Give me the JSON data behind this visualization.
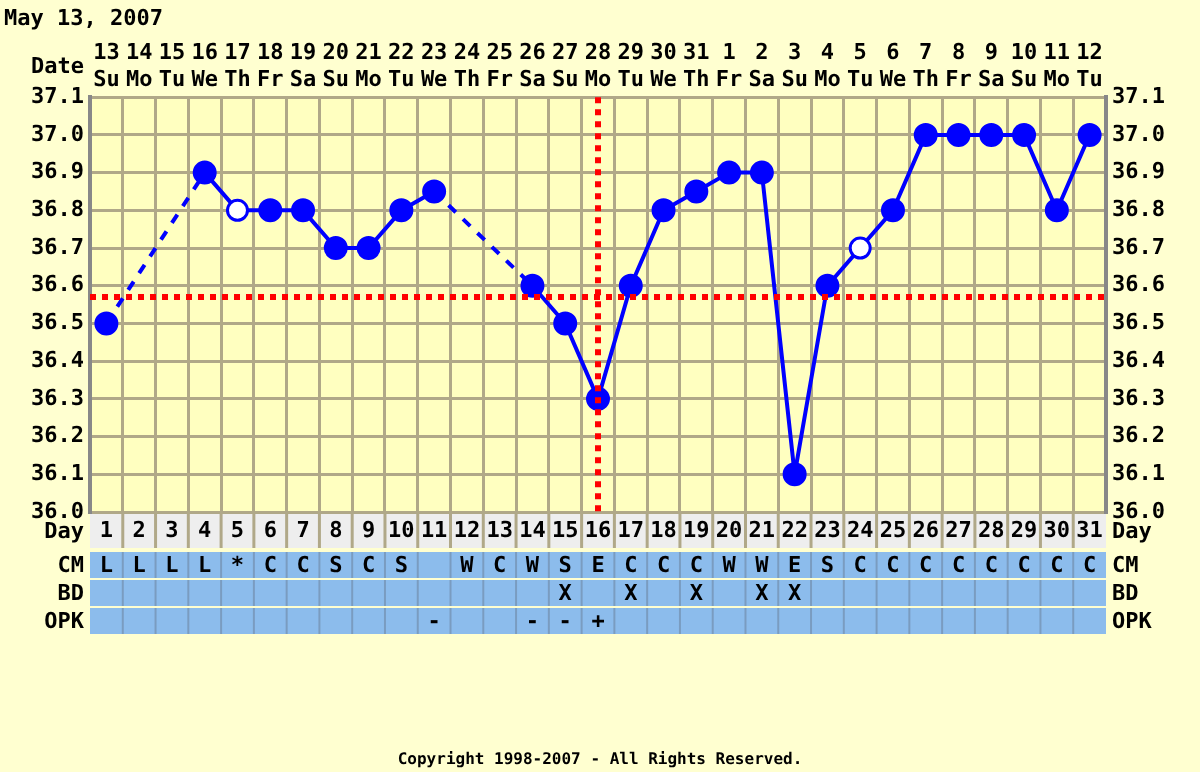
{
  "chart_data": {
    "type": "line",
    "title": "May 13, 2007",
    "xlabel": "Date",
    "x2label": "Day",
    "categories": [
      "13 Su",
      "14 Mo",
      "15 Tu",
      "16 We",
      "17 Th",
      "18 Fr",
      "19 Sa",
      "20 Su",
      "21 Mo",
      "22 Tu",
      "23 We",
      "24 Th",
      "25 Fr",
      "26 Sa",
      "27 Su",
      "28 Mo",
      "29 Tu",
      "30 We",
      "31 Th",
      "1 Fr",
      "2 Sa",
      "3 Su",
      "4 Mo",
      "5 Tu",
      "6 We",
      "7 Th",
      "8 Fr",
      "9 Sa",
      "10 Su",
      "11 Mo",
      "12 Tu"
    ],
    "series": [
      {
        "color": "#0000ff",
        "values": [
          36.5,
          null,
          null,
          36.9,
          36.8,
          36.8,
          36.8,
          36.7,
          36.7,
          36.8,
          36.85,
          null,
          null,
          36.6,
          36.5,
          36.3,
          36.6,
          36.8,
          36.85,
          36.9,
          36.9,
          36.1,
          36.6,
          36.7,
          36.8,
          37.0,
          37.0,
          37.0,
          37.0,
          36.8,
          37.0
        ]
      },
      {
        "type": "scatter",
        "color": "#0000ff",
        "values": [
          null,
          null,
          null,
          null,
          36.8,
          null,
          null,
          null,
          null,
          null,
          null,
          null,
          null,
          null,
          null,
          null,
          null,
          null,
          null,
          null,
          null,
          null,
          null,
          36.7,
          null,
          null,
          null,
          null,
          null,
          null,
          null
        ]
      }
    ],
    "ylim": [
      36.0,
      37.1
    ],
    "yticks": [
      {
        "value": 36.0,
        "label": "36.0"
      },
      36.1,
      36.2,
      36.3,
      36.4,
      36.5,
      36.6,
      36.7,
      36.8,
      36.9,
      {
        "value": 37.0,
        "label": "37.0"
      },
      37.1
    ],
    "y2lim": [
      36.0,
      37.1
    ],
    "y2ticks": [
      {
        "value": 36.0,
        "label": "36.0"
      },
      36.1,
      36.2,
      36.3,
      36.4,
      36.5,
      36.6,
      36.7,
      36.8,
      36.9,
      {
        "value": 37.0,
        "label": "37.0"
      },
      37.1
    ],
    "x2lim": [
      0.5,
      31.5
    ],
    "x2ticks": [
      1,
      2,
      3,
      4,
      5,
      6,
      7,
      8,
      9,
      10,
      11,
      12,
      13,
      14,
      15,
      16,
      17,
      18,
      19,
      20,
      21,
      22,
      23,
      24,
      25,
      26,
      27,
      28,
      29,
      30,
      31
    ],
    "ref_lines": [
      {
        "axis": "y",
        "value": 36.57,
        "color": "#ff0000",
        "line_style": "dotted"
      },
      {
        "axis": "x",
        "value": "28 Mo",
        "color": "#ff0000",
        "line_style": "dotted"
      }
    ],
    "grid": true,
    "legend": false,
    "marker": "circle",
    "line_style": "solid",
    "annotations": [
      "CM",
      "LLLL*CCSCS WCWSECCCWWESCCCCCCCC",
      "BD",
      "              X X X XX         ",
      "OPK",
      "          -  --+               ",
      "Copyright 1998-2007 - All Rights Reserved."
    ]
  }
}
